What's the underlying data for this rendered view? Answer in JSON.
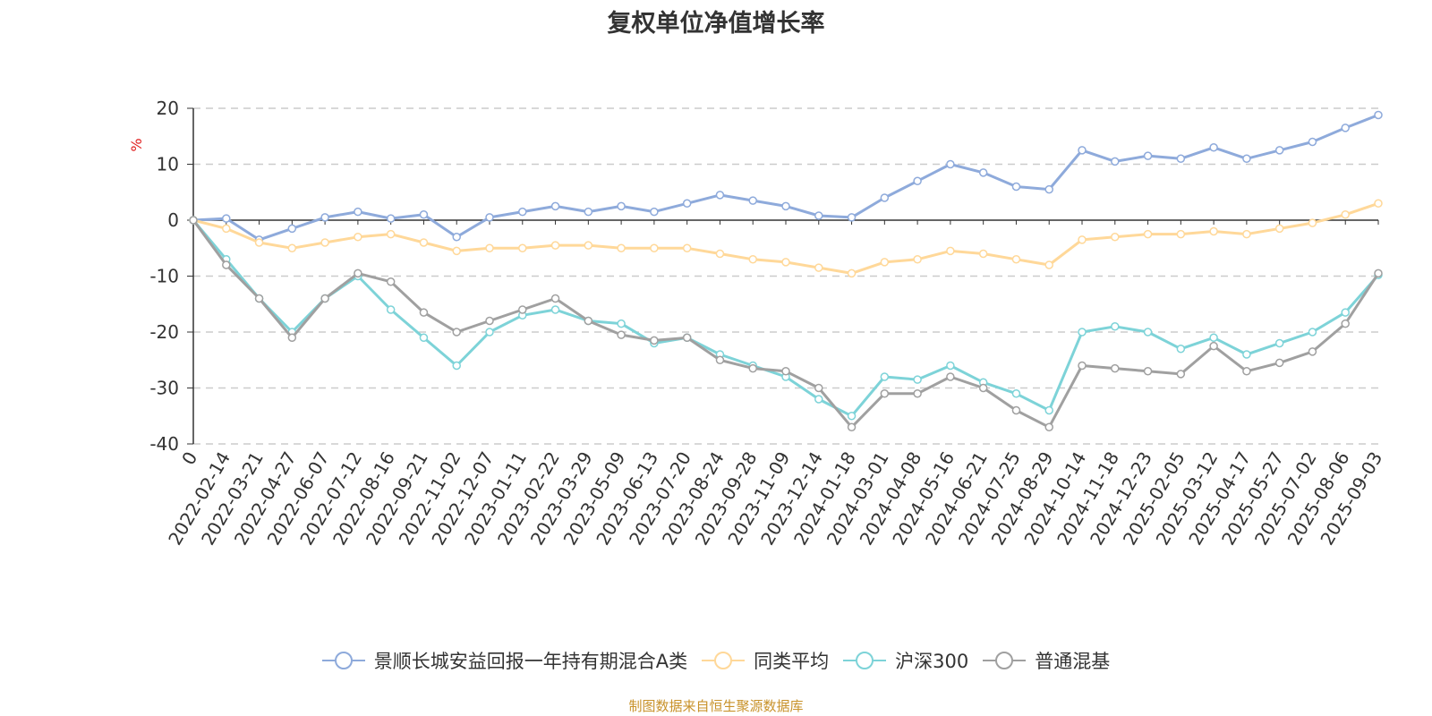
{
  "chart_data": {
    "type": "line",
    "title": "复权单位净值增长率",
    "ylabel": "%",
    "ylim": [
      -40,
      20
    ],
    "yticks": [
      "20",
      "10",
      "0",
      "-10",
      "-20",
      "-30",
      "-40"
    ],
    "grid": true,
    "legend_position": "bottom",
    "x_tick_labels": [
      "0",
      "2022-02-14",
      "2022-03-21",
      "2022-04-27",
      "2022-06-07",
      "2022-07-12",
      "2022-08-16",
      "2022-09-21",
      "2022-11-02",
      "2022-12-07",
      "2023-01-11",
      "2023-02-22",
      "2023-03-29",
      "2023-05-09",
      "2023-06-13",
      "2023-07-20",
      "2023-08-24",
      "2023-09-28",
      "2023-11-09",
      "2023-12-14",
      "2024-01-18",
      "2024-03-01",
      "2024-04-08",
      "2024-05-16",
      "2024-06-21",
      "2024-07-25",
      "2024-08-29",
      "2024-10-14",
      "2024-11-18",
      "2024-12-23",
      "2025-02-05",
      "2025-03-12",
      "2025-04-17",
      "2025-05-27",
      "2025-07-02",
      "2025-08-06",
      "2025-09-03"
    ],
    "series": [
      {
        "name": "景顺长城安益回报一年持有期混合A类",
        "color": "#8eaadb",
        "values": [
          0,
          0.3,
          -3.5,
          -1.5,
          0.5,
          1.5,
          0.3,
          1.0,
          -3.0,
          0.5,
          1.5,
          2.5,
          1.5,
          2.5,
          1.5,
          3.0,
          4.5,
          3.5,
          2.5,
          0.8,
          0.5,
          4.0,
          7.0,
          10.0,
          8.5,
          6.0,
          5.5,
          12.5,
          10.5,
          11.5,
          11.0,
          13.0,
          11.0,
          12.5,
          14.0,
          16.5,
          18.8
        ]
      },
      {
        "name": "同类平均",
        "color": "#ffd899",
        "values": [
          0,
          -1.5,
          -4.0,
          -5.0,
          -4.0,
          -3.0,
          -2.5,
          -4.0,
          -5.5,
          -5.0,
          -5.0,
          -4.5,
          -4.5,
          -5.0,
          -5.0,
          -5.0,
          -6.0,
          -7.0,
          -7.5,
          -8.5,
          -9.5,
          -7.5,
          -7.0,
          -5.5,
          -6.0,
          -7.0,
          -8.0,
          -3.5,
          -3.0,
          -2.5,
          -2.5,
          -2.0,
          -2.5,
          -1.5,
          -0.5,
          1.0,
          3.0
        ]
      },
      {
        "name": "沪深300",
        "color": "#7dd3d8",
        "values": [
          0,
          -7.0,
          -14.0,
          -20.0,
          -14.0,
          -10.0,
          -16.0,
          -21.0,
          -26.0,
          -20.0,
          -17.0,
          -16.0,
          -18.0,
          -18.5,
          -22.0,
          -21.0,
          -24.0,
          -26.0,
          -28.0,
          -32.0,
          -35.0,
          -28.0,
          -28.5,
          -26.0,
          -29.0,
          -31.0,
          -34.0,
          -20.0,
          -19.0,
          -20.0,
          -23.0,
          -21.0,
          -24.0,
          -22.0,
          -20.0,
          -16.5,
          -9.8
        ]
      },
      {
        "name": "普通混基",
        "color": "#a0a0a0",
        "values": [
          0,
          -8.0,
          -14.0,
          -21.0,
          -14.0,
          -9.5,
          -11.0,
          -16.5,
          -20.0,
          -18.0,
          -16.0,
          -14.0,
          -18.0,
          -20.5,
          -21.5,
          -21.0,
          -25.0,
          -26.5,
          -27.0,
          -30.0,
          -37.0,
          -31.0,
          -31.0,
          -28.0,
          -30.0,
          -34.0,
          -37.0,
          -26.0,
          -26.5,
          -27.0,
          -27.5,
          -22.5,
          -27.0,
          -25.5,
          -23.5,
          -18.5,
          -9.5
        ]
      }
    ]
  },
  "legend": {
    "items": [
      "景顺长城安益回报一年持有期混合A类",
      "同类平均",
      "沪深300",
      "普通混基"
    ]
  },
  "footer": "制图数据来自恒生聚源数据库",
  "colors": {
    "title": "#333333",
    "footer": "#c8922a",
    "ylabel": "#e02020",
    "grid": "#cccccc",
    "axis": "#333333"
  }
}
